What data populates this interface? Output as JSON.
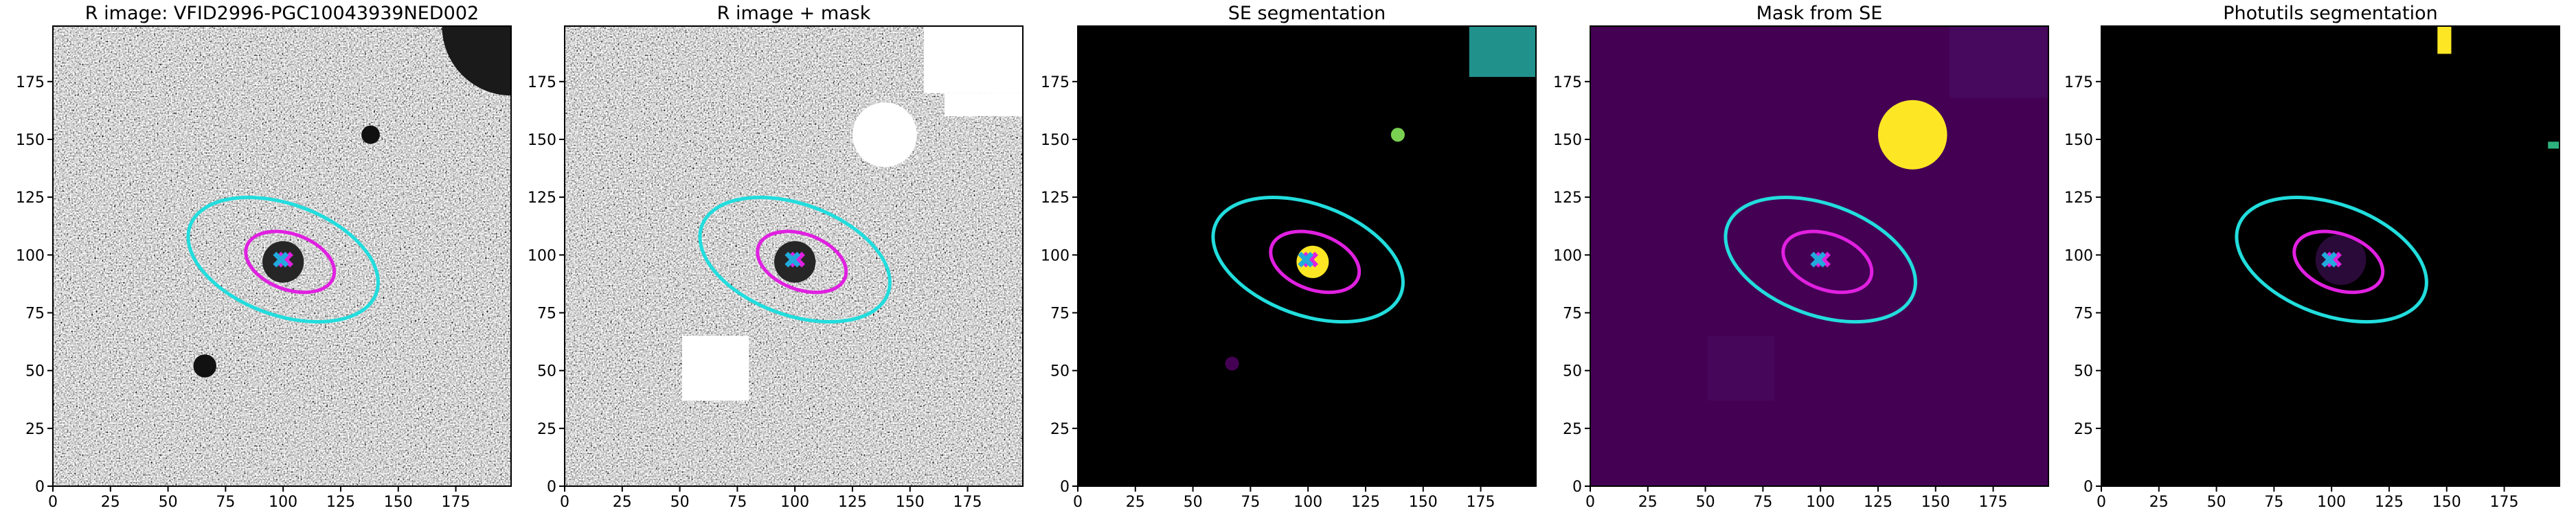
{
  "chart_data": [
    {
      "type": "image",
      "title": "R image: VFID2996-PGC10043939NED002",
      "background": "noise",
      "xlim": [
        0,
        199
      ],
      "ylim": [
        0,
        199
      ],
      "xticks": [
        0,
        25,
        50,
        75,
        100,
        125,
        150,
        175
      ],
      "yticks": [
        0,
        25,
        50,
        75,
        100,
        125,
        150,
        175
      ],
      "regions": [
        {
          "shape": "circle",
          "cx": 199,
          "cy": 199,
          "r": 30,
          "color": "#1a1a1a"
        },
        {
          "shape": "circle",
          "cx": 138,
          "cy": 152,
          "r": 4,
          "color": "#111111"
        },
        {
          "shape": "circle",
          "cx": 66,
          "cy": 52,
          "r": 5,
          "color": "#111111"
        },
        {
          "shape": "circle",
          "cx": 100,
          "cy": 97,
          "r": 9,
          "color": "#262626"
        }
      ],
      "ellipses": [
        {
          "color": "#22dddd",
          "center": [
            100,
            98
          ],
          "a": 43,
          "b": 24,
          "angle": -20
        },
        {
          "color": "#e020e0",
          "center": [
            103,
            97
          ],
          "a": 20,
          "b": 12,
          "angle": -20
        }
      ],
      "markers": [
        {
          "color": "#e020e0",
          "x": 101,
          "y": 98
        },
        {
          "color": "#22aadd",
          "x": 99,
          "y": 98
        }
      ]
    },
    {
      "type": "image",
      "title": "R image + mask",
      "background": "noise",
      "xlim": [
        0,
        199
      ],
      "ylim": [
        0,
        199
      ],
      "xticks": [
        0,
        25,
        50,
        75,
        100,
        125,
        150,
        175
      ],
      "yticks": [
        0,
        25,
        50,
        75,
        100,
        125,
        150,
        175
      ],
      "regions": [
        {
          "shape": "circle",
          "cx": 100,
          "cy": 97,
          "r": 9,
          "color": "#262626"
        },
        {
          "shape": "rect",
          "x0": 156,
          "x1": 199,
          "y0": 170,
          "y1": 199,
          "color": "#ffffff"
        },
        {
          "shape": "rect",
          "x0": 165,
          "x1": 199,
          "y0": 160,
          "y1": 170,
          "color": "#ffffff"
        },
        {
          "shape": "circle",
          "cx": 139,
          "cy": 152,
          "r": 14,
          "color": "#ffffff"
        },
        {
          "shape": "rect",
          "x0": 51,
          "x1": 80,
          "y0": 37,
          "y1": 65,
          "color": "#ffffff"
        }
      ],
      "ellipses": [
        {
          "color": "#22dddd",
          "center": [
            100,
            98
          ],
          "a": 43,
          "b": 24,
          "angle": -20
        },
        {
          "color": "#e020e0",
          "center": [
            103,
            97
          ],
          "a": 20,
          "b": 12,
          "angle": -20
        }
      ],
      "markers": [
        {
          "color": "#e020e0",
          "x": 101,
          "y": 98
        },
        {
          "color": "#22aadd",
          "x": 99,
          "y": 98
        }
      ]
    },
    {
      "type": "image",
      "title": "SE segmentation",
      "background": "#000000",
      "xlim": [
        0,
        199
      ],
      "ylim": [
        0,
        199
      ],
      "xticks": [
        0,
        25,
        50,
        75,
        100,
        125,
        150,
        175
      ],
      "yticks": [
        0,
        25,
        50,
        75,
        100,
        125,
        150,
        175
      ],
      "regions": [
        {
          "shape": "rect",
          "x0": 170,
          "x1": 199,
          "y0": 177,
          "y1": 199,
          "color": "#21918c"
        },
        {
          "shape": "circle",
          "cx": 139,
          "cy": 152,
          "r": 3,
          "color": "#7ad151"
        },
        {
          "shape": "circle",
          "cx": 67,
          "cy": 53,
          "r": 3,
          "color": "#440154"
        },
        {
          "shape": "circle",
          "cx": 102,
          "cy": 97,
          "r": 7,
          "color": "#fde725"
        }
      ],
      "ellipses": [
        {
          "color": "#22dddd",
          "center": [
            100,
            98
          ],
          "a": 43,
          "b": 24,
          "angle": -20
        },
        {
          "color": "#e020e0",
          "center": [
            103,
            97
          ],
          "a": 20,
          "b": 12,
          "angle": -20
        }
      ],
      "markers": [
        {
          "color": "#e020e0",
          "x": 101,
          "y": 98
        },
        {
          "color": "#22aadd",
          "x": 99,
          "y": 98
        }
      ]
    },
    {
      "type": "image",
      "title": "Mask from SE",
      "background": "#440154",
      "xlim": [
        0,
        199
      ],
      "ylim": [
        0,
        199
      ],
      "xticks": [
        0,
        25,
        50,
        75,
        100,
        125,
        150,
        175
      ],
      "yticks": [
        0,
        25,
        50,
        75,
        100,
        125,
        150,
        175
      ],
      "regions": [
        {
          "shape": "rect",
          "x0": 156,
          "x1": 199,
          "y0": 168,
          "y1": 199,
          "color": "#47095d"
        },
        {
          "shape": "rect",
          "x0": 51,
          "x1": 80,
          "y0": 37,
          "y1": 65,
          "color": "#46065a"
        },
        {
          "shape": "circle",
          "cx": 140,
          "cy": 152,
          "r": 15,
          "color": "#fde725"
        }
      ],
      "ellipses": [
        {
          "color": "#22dddd",
          "center": [
            100,
            98
          ],
          "a": 43,
          "b": 24,
          "angle": -20
        },
        {
          "color": "#e020e0",
          "center": [
            103,
            97
          ],
          "a": 20,
          "b": 12,
          "angle": -20
        }
      ],
      "markers": [
        {
          "color": "#e020e0",
          "x": 101,
          "y": 98
        },
        {
          "color": "#22aadd",
          "x": 99,
          "y": 98
        }
      ]
    },
    {
      "type": "image",
      "title": "Photutils segmentation",
      "background": "#000000",
      "xlim": [
        0,
        199
      ],
      "ylim": [
        0,
        199
      ],
      "xticks": [
        0,
        25,
        50,
        75,
        100,
        125,
        150,
        175
      ],
      "yticks": [
        0,
        25,
        50,
        75,
        100,
        125,
        150,
        175
      ],
      "regions": [
        {
          "shape": "rect",
          "x0": 146,
          "x1": 152,
          "y0": 187,
          "y1": 199,
          "color": "#fde725"
        },
        {
          "shape": "rect",
          "x0": 194,
          "x1": 199,
          "y0": 146,
          "y1": 149,
          "color": "#2db27d"
        },
        {
          "shape": "circle",
          "cx": 104,
          "cy": 98,
          "r": 11,
          "color": "#2a0a38"
        }
      ],
      "ellipses": [
        {
          "color": "#22dddd",
          "center": [
            100,
            98
          ],
          "a": 43,
          "b": 24,
          "angle": -20
        },
        {
          "color": "#e020e0",
          "center": [
            103,
            97
          ],
          "a": 20,
          "b": 12,
          "angle": -20
        }
      ],
      "markers": [
        {
          "color": "#e020e0",
          "x": 101,
          "y": 98
        },
        {
          "color": "#22aadd",
          "x": 99,
          "y": 98
        }
      ]
    }
  ]
}
